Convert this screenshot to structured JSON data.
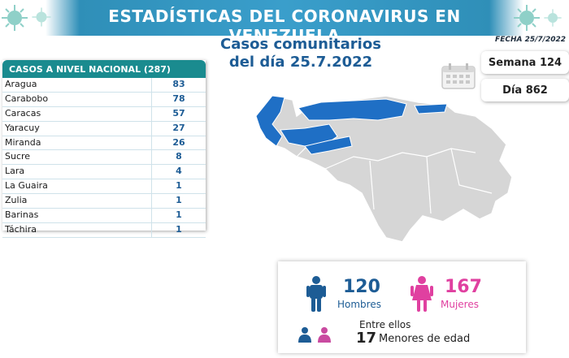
{
  "header": {
    "title": "ESTADÍSTICAS DEL CORONAVIRUS EN VENEZUELA"
  },
  "subtitle": {
    "line1": "Casos comunitarios",
    "line2": "del día 25.7.2022"
  },
  "fecha": "FECHA 25/7/2022",
  "table": {
    "heading": "CASOS A NIVEL NACIONAL (287)",
    "rows": [
      {
        "state": "Aragua",
        "cases": "83"
      },
      {
        "state": "Carabobo",
        "cases": "78"
      },
      {
        "state": "Caracas",
        "cases": "57"
      },
      {
        "state": "Yaracuy",
        "cases": "27"
      },
      {
        "state": "Miranda",
        "cases": "26"
      },
      {
        "state": "Sucre",
        "cases": "8"
      },
      {
        "state": "Lara",
        "cases": "4"
      },
      {
        "state": "La Guaira",
        "cases": "1"
      },
      {
        "state": "Zulia",
        "cases": "1"
      },
      {
        "state": "Barinas",
        "cases": "1"
      },
      {
        "state": "Táchira",
        "cases": "1"
      }
    ]
  },
  "semana": "Semana 124",
  "dia": "Día 862",
  "stats": {
    "hombres_count": "120",
    "hombres_label": "Hombres",
    "mujeres_count": "167",
    "mujeres_label": "Mujeres",
    "entre_ellos": "Entre ellos",
    "menores_count": "17",
    "menores_label": "Menores de edad"
  },
  "colors": {
    "banner": "#3a9ecb",
    "teal": "#1a8b8f",
    "navy": "#1d5c95",
    "magenta": "#e040a0",
    "map_highlight": "#1f6fc5",
    "map_base": "#d6d6d6"
  }
}
